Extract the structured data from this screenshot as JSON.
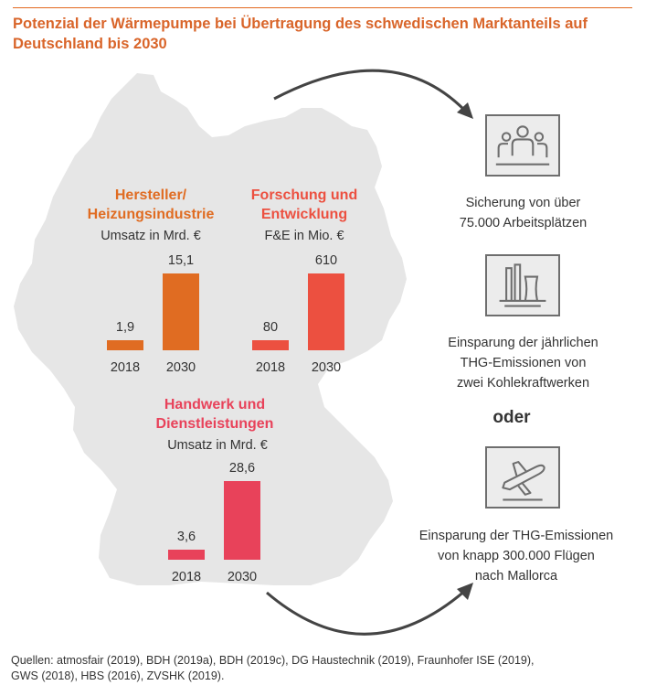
{
  "title": "Potenzial der Wärmepumpe bei Übertragung des schwedischen Marktanteils auf Deutschland bis 2030",
  "colors": {
    "orange": "#e06c22",
    "red": "#ec5040",
    "pink": "#e8425a",
    "map": "#e6e6e6",
    "title": "#d9652a"
  },
  "chart_data": [
    {
      "type": "bar",
      "title": "Hersteller/ Heizungsindustrie",
      "ylabel": "Umsatz in Mrd. €",
      "categories": [
        "2018",
        "2030"
      ],
      "values": [
        1.9,
        15.1
      ],
      "value_labels": [
        "1,9",
        "15,1"
      ],
      "color": "#e06c22"
    },
    {
      "type": "bar",
      "title": "Forschung und Entwicklung",
      "ylabel": "F&E in Mio. €",
      "categories": [
        "2018",
        "2030"
      ],
      "values": [
        80,
        610
      ],
      "value_labels": [
        "80",
        "610"
      ],
      "color": "#ec5040"
    },
    {
      "type": "bar",
      "title": "Handwerk und Dienstleistungen",
      "ylabel": "Umsatz in Mrd. €",
      "categories": [
        "2018",
        "2030"
      ],
      "values": [
        3.6,
        28.6
      ],
      "value_labels": [
        "3,6",
        "28,6"
      ],
      "color": "#e8425a"
    }
  ],
  "chart_text": {
    "h1": {
      "line1": "Hersteller/",
      "line2": "Heizungsindustrie",
      "sub": "Umsatz in Mrd. €"
    },
    "h2": {
      "line1": "Forschung und",
      "line2": "Entwicklung",
      "sub": "F&E in Mio. €"
    },
    "h3": {
      "line1": "Handwerk und",
      "line2": "Dienstleistungen",
      "sub": "Umsatz in Mrd. €"
    }
  },
  "effects": [
    {
      "icon": "people-icon",
      "line1": "Sicherung von über",
      "line2": "75.000 Arbeitsplätzen"
    },
    {
      "icon": "power-plant-icon",
      "line1": "Einsparung der jährlichen",
      "line2": "THG-Emissionen von",
      "line3": "zwei Kohlekraftwerken"
    },
    {
      "icon": "airplane-icon",
      "line1": "Einsparung der THG-Emissionen",
      "line2": "von knapp 300.000 Flügen",
      "line3": "nach Mallorca"
    }
  ],
  "oder": "oder",
  "footer": {
    "line1": "Quellen: atmosfair (2019), BDH (2019a), BDH (2019c), DG Haustechnik (2019), Fraunhofer ISE (2019),",
    "line2": "GWS (2018), HBS (2016), ZVSHK (2019)."
  }
}
